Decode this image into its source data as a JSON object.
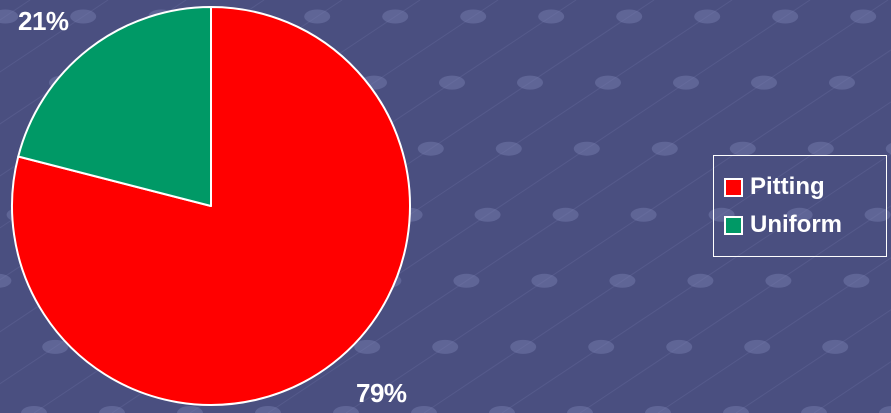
{
  "chart_data": {
    "type": "pie",
    "title": "",
    "series": [
      {
        "name": "Pitting",
        "value": 79,
        "label": "79%",
        "color": "#ff0000"
      },
      {
        "name": "Uniform",
        "value": 21,
        "label": "21%",
        "color": "#009966"
      }
    ],
    "legend_position": "right",
    "border_color": "#ffffff"
  },
  "background": {
    "color": "#4a4f80",
    "pattern": "dotted-diagonal-lines"
  }
}
